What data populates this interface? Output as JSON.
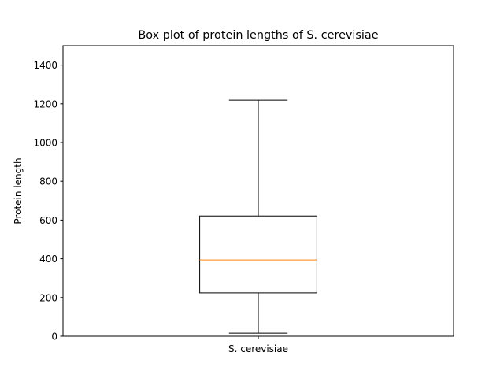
{
  "chart_data": {
    "type": "box",
    "title": "Box plot of protein lengths of S. cerevisiae",
    "xlabel": "",
    "ylabel": "Protein length",
    "categories": [
      "S. cerevisiae"
    ],
    "ylim": [
      0,
      1500
    ],
    "yticks": [
      0,
      200,
      400,
      600,
      800,
      1000,
      1200,
      1400
    ],
    "grid": false,
    "boxes": [
      {
        "label": "S. cerevisiae",
        "whisker_low": 16,
        "q1": 224,
        "median": 394,
        "q3": 621,
        "whisker_high": 1219
      }
    ],
    "colors": {
      "box": "#000000",
      "median": "#ff7f0e"
    }
  }
}
